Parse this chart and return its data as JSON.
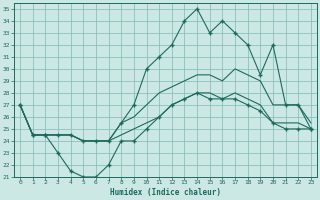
{
  "xlabel": "Humidex (Indice chaleur)",
  "bg_color": "#cce8e4",
  "grid_color": "#7bbcb4",
  "line_color": "#1a6b5e",
  "xticks": [
    0,
    1,
    2,
    3,
    4,
    5,
    6,
    7,
    8,
    9,
    10,
    11,
    12,
    13,
    14,
    15,
    16,
    17,
    18,
    19,
    20,
    21,
    22,
    23
  ],
  "yticks": [
    21,
    22,
    23,
    24,
    25,
    26,
    27,
    28,
    29,
    30,
    31,
    32,
    33,
    34,
    35
  ],
  "xlim": [
    -0.5,
    23.5
  ],
  "ylim": [
    21,
    35.5
  ],
  "series_top": [
    27,
    24.5,
    24.5,
    24.5,
    24.5,
    24,
    24,
    24,
    25.5,
    27,
    30,
    31,
    32,
    34,
    35,
    33,
    34,
    33,
    32,
    29.5,
    32,
    27,
    27,
    25
  ],
  "series_upper": [
    27,
    24.5,
    24.5,
    24.5,
    24.5,
    24,
    24,
    24,
    25.5,
    26,
    27,
    28,
    28.5,
    29,
    29.5,
    29.5,
    29,
    30,
    29.5,
    29,
    27,
    27,
    27,
    25.5
  ],
  "series_lower": [
    27,
    24.5,
    24.5,
    24.5,
    24.5,
    24,
    24,
    24,
    24.5,
    25,
    25.5,
    26,
    27,
    27.5,
    28,
    28,
    27.5,
    28,
    27.5,
    27,
    25.5,
    25.5,
    25.5,
    25
  ],
  "series_bottom": [
    27,
    24.5,
    24.5,
    23,
    21.5,
    21,
    21,
    22,
    24,
    24,
    25,
    26,
    27,
    27.5,
    28,
    27.5,
    27.5,
    27.5,
    27,
    26.5,
    25.5,
    25,
    25,
    25
  ]
}
